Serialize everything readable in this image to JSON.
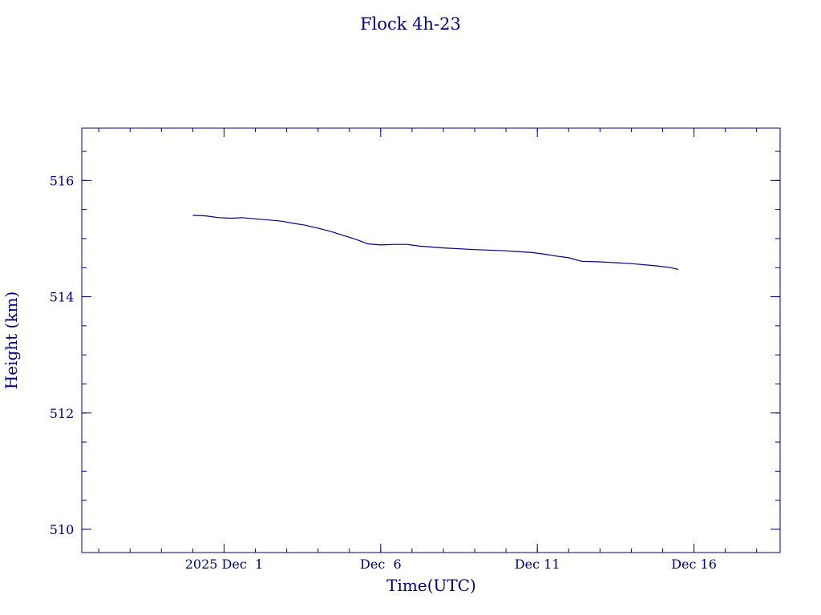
{
  "chart_data": {
    "type": "line",
    "title": "Flock 4h-23",
    "xlabel": "Time(UTC)",
    "ylabel": "Height (km)",
    "xlim": [
      "2025-11-26T11:00",
      "2025-12-18T18:00"
    ],
    "ylim": [
      509.6,
      516.9
    ],
    "x_ticks": [
      {
        "date": "2025-12-01",
        "label": "2025 Dec  1"
      },
      {
        "date": "2025-12-06",
        "label": "Dec  6"
      },
      {
        "date": "2025-12-11",
        "label": "Dec 11"
      },
      {
        "date": "2025-12-16",
        "label": "Dec 16"
      }
    ],
    "y_ticks": [
      510,
      512,
      514,
      516
    ],
    "grid": false,
    "color": "#000080",
    "series": [
      {
        "x": [
          "2025-11-30T00:00",
          "2025-11-30T10:00",
          "2025-11-30T20:00",
          "2025-12-01T06:00",
          "2025-12-01T14:00",
          "2025-12-02T00:00",
          "2025-12-02T10:00",
          "2025-12-02T20:00",
          "2025-12-03T06:00",
          "2025-12-03T14:00",
          "2025-12-04T00:00",
          "2025-12-04T10:00",
          "2025-12-04T20:00",
          "2025-12-05T06:00",
          "2025-12-05T14:00",
          "2025-12-06T00:00",
          "2025-12-06T10:00",
          "2025-12-06T20:00",
          "2025-12-07T06:00",
          "2025-12-08T00:00",
          "2025-12-09T00:00",
          "2025-12-10T00:00",
          "2025-12-10T20:00",
          "2025-12-11T06:00",
          "2025-12-11T14:00",
          "2025-12-12T00:00",
          "2025-12-12T10:00",
          "2025-12-13T00:00",
          "2025-12-14T00:00",
          "2025-12-14T20:00",
          "2025-12-15T06:00",
          "2025-12-15T12:00"
        ],
        "y": [
          515.4,
          515.39,
          515.36,
          515.35,
          515.36,
          515.34,
          515.32,
          515.3,
          515.26,
          515.23,
          515.18,
          515.12,
          515.05,
          514.98,
          514.91,
          514.89,
          514.9,
          514.9,
          514.87,
          514.84,
          514.81,
          514.79,
          514.76,
          514.73,
          514.7,
          514.67,
          514.61,
          514.6,
          514.57,
          514.53,
          514.5,
          514.47
        ]
      }
    ]
  }
}
